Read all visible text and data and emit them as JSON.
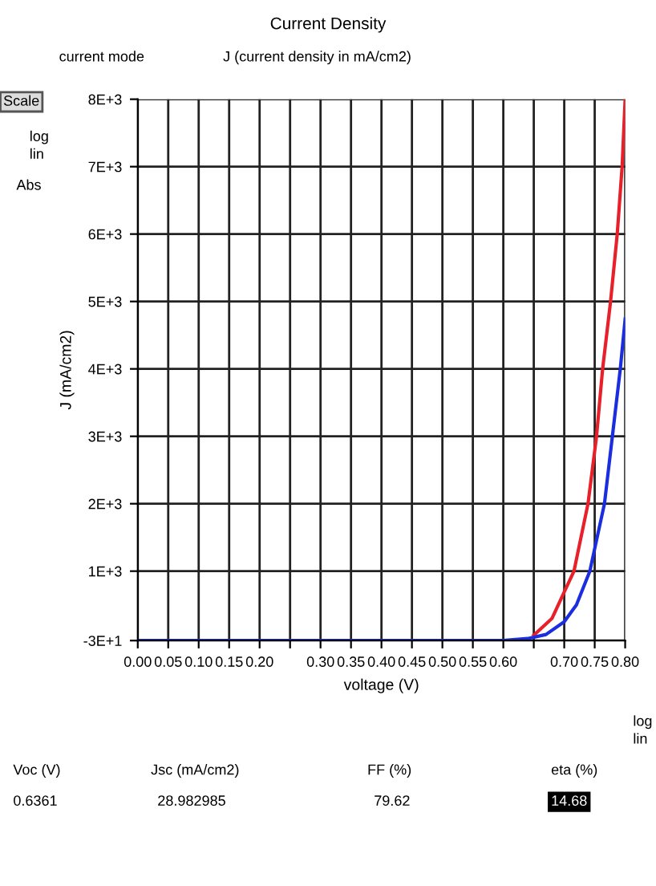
{
  "chart_data": {
    "type": "line",
    "title": "Current Density",
    "xlabel": "voltage (V)",
    "ylabel": "J (mA/cm2)",
    "series": [
      {
        "color": "#e8202a",
        "x": [
          0.65,
          0.68,
          0.7,
          0.716,
          0.739,
          0.753,
          0.763,
          0.776,
          0.787,
          0.795,
          0.8
        ],
        "values": [
          50,
          300,
          690,
          1000,
          2000,
          3000,
          4000,
          5000,
          6000,
          7000,
          8000
        ]
      },
      {
        "color": "#1a2ee0",
        "x": [
          0,
          0.55,
          0.6,
          0.64,
          0.67,
          0.7,
          0.72,
          0.742,
          0.766,
          0.779,
          0.792,
          0.8
        ],
        "values": [
          -30,
          -30,
          -30,
          0,
          60,
          250,
          500,
          1000,
          2000,
          3000,
          4000,
          4740
        ]
      }
    ],
    "xlim": [
      0,
      0.8
    ],
    "xticks": [
      {
        "value": 0,
        "label": "0.00"
      },
      {
        "value": 0.05,
        "label": "0.05"
      },
      {
        "value": 0.1,
        "label": "0.10"
      },
      {
        "value": 0.15,
        "label": "0.15"
      },
      {
        "value": 0.2,
        "label": "0.20"
      },
      {
        "value": 0.25,
        "label": null
      },
      {
        "value": 0.3,
        "label": "0.30"
      },
      {
        "value": 0.35,
        "label": "0.35"
      },
      {
        "value": 0.4,
        "label": "0.40"
      },
      {
        "value": 0.45,
        "label": "0.45"
      },
      {
        "value": 0.5,
        "label": "0.50"
      },
      {
        "value": 0.55,
        "label": "0.55"
      },
      {
        "value": 0.6,
        "label": "0.60"
      },
      {
        "value": 0.65,
        "label": null
      },
      {
        "value": 0.7,
        "label": "0.70"
      },
      {
        "value": 0.75,
        "label": "0.75"
      },
      {
        "value": 0.8,
        "label": "0.80"
      }
    ],
    "ylim": [
      -30,
      8000
    ],
    "yticks": [
      {
        "value": -30,
        "label": "-3E+1"
      },
      {
        "value": 1000,
        "label": "1E+3"
      },
      {
        "value": 2000,
        "label": "2E+3"
      },
      {
        "value": 3000,
        "label": "3E+3"
      },
      {
        "value": 4000,
        "label": "4E+3"
      },
      {
        "value": 5000,
        "label": "5E+3"
      },
      {
        "value": 6000,
        "label": "6E+3"
      },
      {
        "value": 7000,
        "label": "7E+3"
      },
      {
        "value": 8000,
        "label": "8E+3"
      }
    ],
    "grid": true,
    "annotations": [
      "current mode",
      "J (current density in mA/cm2)",
      "Scale",
      "log",
      "lin",
      "Abs",
      "log",
      "lin",
      "Voc (V)",
      "0.6361",
      "Jsc (mA/cm2)",
      "28.982985",
      "FF (%)",
      "79.62",
      "eta (%)",
      "14.68"
    ]
  }
}
